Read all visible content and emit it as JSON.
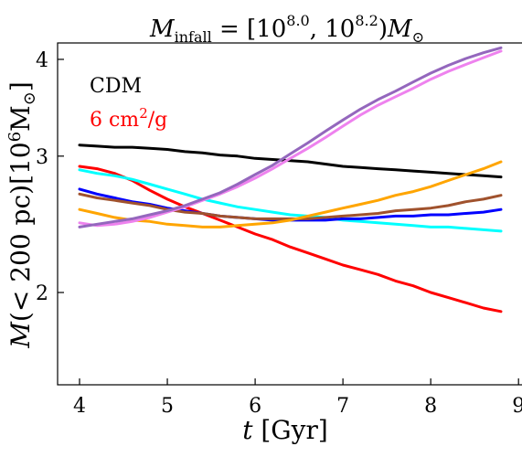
{
  "chart_data": {
    "type": "line",
    "title": "M_infall = [10^8.0, 10^8.2) M_⊙",
    "xlabel": "t [Gyr]",
    "ylabel": "M(< 200 pc)[10^6 M_⊙]",
    "xlim": [
      3.75,
      9.05
    ],
    "ylim": [
      1.52,
      4.2
    ],
    "yscale": "log",
    "xticks": [
      4,
      5,
      6,
      7,
      8,
      9
    ],
    "yticks": [
      2,
      3,
      4
    ],
    "legend": {
      "placement": "top-left",
      "entries": [
        {
          "label": "CDM",
          "color": "#000000"
        },
        {
          "label": "6 cm^2/g",
          "color": "#ff0000"
        }
      ]
    },
    "x": [
      4.0,
      4.2,
      4.4,
      4.6,
      4.8,
      5.0,
      5.2,
      5.4,
      5.6,
      5.8,
      6.0,
      6.2,
      6.4,
      6.6,
      6.8,
      7.0,
      7.2,
      7.4,
      7.6,
      7.8,
      8.0,
      8.2,
      8.4,
      8.6,
      8.8
    ],
    "series": [
      {
        "color": "#000000",
        "values": [
          3.1,
          3.09,
          3.08,
          3.08,
          3.07,
          3.06,
          3.04,
          3.03,
          3.01,
          3.0,
          2.98,
          2.97,
          2.96,
          2.95,
          2.93,
          2.91,
          2.9,
          2.89,
          2.88,
          2.87,
          2.86,
          2.85,
          2.84,
          2.83,
          2.82
        ]
      },
      {
        "color": "#ff0000",
        "values": [
          2.91,
          2.89,
          2.85,
          2.79,
          2.71,
          2.64,
          2.58,
          2.53,
          2.48,
          2.43,
          2.38,
          2.34,
          2.29,
          2.25,
          2.21,
          2.17,
          2.14,
          2.11,
          2.07,
          2.04,
          2.0,
          1.97,
          1.94,
          1.91,
          1.89
        ]
      },
      {
        "color": "#00ffff",
        "values": [
          2.88,
          2.85,
          2.83,
          2.8,
          2.76,
          2.72,
          2.68,
          2.64,
          2.61,
          2.58,
          2.56,
          2.54,
          2.52,
          2.51,
          2.5,
          2.48,
          2.47,
          2.46,
          2.45,
          2.44,
          2.43,
          2.43,
          2.42,
          2.41,
          2.4
        ]
      },
      {
        "color": "#0000ff",
        "values": [
          2.72,
          2.68,
          2.65,
          2.62,
          2.6,
          2.57,
          2.55,
          2.53,
          2.51,
          2.5,
          2.49,
          2.48,
          2.48,
          2.48,
          2.48,
          2.49,
          2.49,
          2.5,
          2.51,
          2.51,
          2.52,
          2.52,
          2.53,
          2.54,
          2.56
        ]
      },
      {
        "color": "#a0522d",
        "values": [
          2.68,
          2.65,
          2.63,
          2.61,
          2.59,
          2.56,
          2.54,
          2.53,
          2.51,
          2.5,
          2.49,
          2.49,
          2.49,
          2.49,
          2.5,
          2.51,
          2.52,
          2.53,
          2.55,
          2.56,
          2.57,
          2.59,
          2.62,
          2.64,
          2.67
        ]
      },
      {
        "color": "#ffa500",
        "values": [
          2.56,
          2.53,
          2.5,
          2.48,
          2.47,
          2.45,
          2.44,
          2.43,
          2.43,
          2.44,
          2.45,
          2.46,
          2.48,
          2.51,
          2.54,
          2.57,
          2.6,
          2.63,
          2.67,
          2.7,
          2.74,
          2.79,
          2.84,
          2.89,
          2.95
        ]
      },
      {
        "color": "#ee82ee",
        "values": [
          2.46,
          2.44,
          2.45,
          2.47,
          2.5,
          2.54,
          2.58,
          2.63,
          2.68,
          2.74,
          2.81,
          2.89,
          2.98,
          3.07,
          3.17,
          3.28,
          3.39,
          3.49,
          3.58,
          3.67,
          3.77,
          3.86,
          3.94,
          4.02,
          4.1
        ]
      },
      {
        "color": "#9467bd",
        "values": [
          2.43,
          2.45,
          2.47,
          2.49,
          2.52,
          2.55,
          2.59,
          2.64,
          2.69,
          2.76,
          2.84,
          2.92,
          3.02,
          3.12,
          3.23,
          3.34,
          3.45,
          3.55,
          3.64,
          3.74,
          3.84,
          3.93,
          4.01,
          4.08,
          4.14
        ]
      }
    ]
  }
}
